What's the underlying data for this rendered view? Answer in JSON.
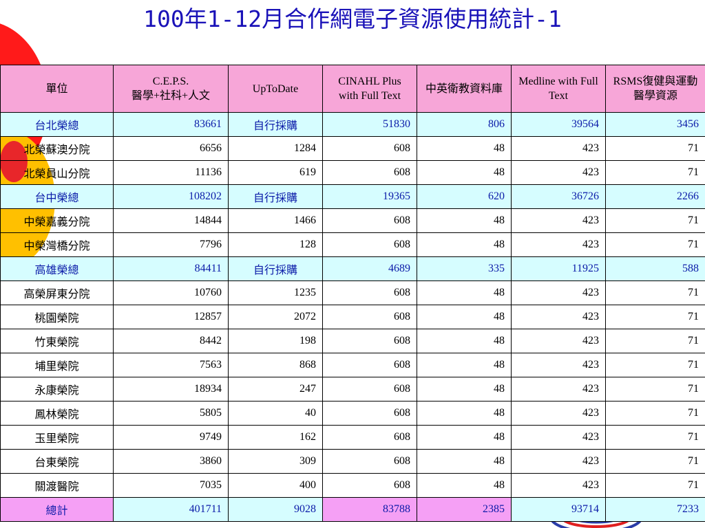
{
  "title": "100年1-12月合作網電子資源使用統計-1",
  "columns": [
    "單位",
    "C.E.P.S.\n醫學+社科+人文",
    "UpToDate",
    "CINAHL Plus with Full Text",
    "中英衛教資料庫",
    "Medline with Full Text",
    "RSMS復健與運動醫學資源"
  ],
  "rows": [
    {
      "type": "hq",
      "cells": [
        "台北榮總",
        "83661",
        "自行採購",
        "51830",
        "806",
        "39564",
        "3456"
      ]
    },
    {
      "type": "branch",
      "cells": [
        "北榮蘇澳分院",
        "6656",
        "1284",
        "608",
        "48",
        "423",
        "71"
      ]
    },
    {
      "type": "branch",
      "cells": [
        "北榮員山分院",
        "11136",
        "619",
        "608",
        "48",
        "423",
        "71"
      ]
    },
    {
      "type": "hq",
      "cells": [
        "台中榮總",
        "108202",
        "自行採購",
        "19365",
        "620",
        "36726",
        "2266"
      ]
    },
    {
      "type": "branch",
      "cells": [
        "中榮嘉義分院",
        "14844",
        "1466",
        "608",
        "48",
        "423",
        "71"
      ]
    },
    {
      "type": "branch",
      "cells": [
        "中榮灣橋分院",
        "7796",
        "128",
        "608",
        "48",
        "423",
        "71"
      ]
    },
    {
      "type": "hq",
      "cells": [
        "高雄榮總",
        "84411",
        "自行採購",
        "4689",
        "335",
        "11925",
        "588"
      ]
    },
    {
      "type": "branch",
      "cells": [
        "高榮屏東分院",
        "10760",
        "1235",
        "608",
        "48",
        "423",
        "71"
      ]
    },
    {
      "type": "branch",
      "cells": [
        "桃園榮院",
        "12857",
        "2072",
        "608",
        "48",
        "423",
        "71"
      ]
    },
    {
      "type": "branch",
      "cells": [
        "竹東榮院",
        "8442",
        "198",
        "608",
        "48",
        "423",
        "71"
      ]
    },
    {
      "type": "branch",
      "cells": [
        "埔里榮院",
        "7563",
        "868",
        "608",
        "48",
        "423",
        "71"
      ]
    },
    {
      "type": "branch",
      "cells": [
        "永康榮院",
        "18934",
        "247",
        "608",
        "48",
        "423",
        "71"
      ]
    },
    {
      "type": "branch",
      "cells": [
        "鳳林榮院",
        "5805",
        "40",
        "608",
        "48",
        "423",
        "71"
      ]
    },
    {
      "type": "branch",
      "cells": [
        "玉里榮院",
        "9749",
        "162",
        "608",
        "48",
        "423",
        "71"
      ]
    },
    {
      "type": "branch",
      "cells": [
        "台東榮院",
        "3860",
        "309",
        "608",
        "48",
        "423",
        "71"
      ]
    },
    {
      "type": "branch",
      "cells": [
        "關渡醫院",
        "7035",
        "400",
        "608",
        "48",
        "423",
        "71"
      ]
    },
    {
      "type": "total",
      "cells": [
        "總計",
        "401711",
        "9028",
        "83788",
        "2385",
        "93714",
        "7233"
      ]
    }
  ],
  "colors": {
    "header_bg": "#f7a6d8",
    "hq_row_bg": "#d6fdff",
    "hq_text": "#0a1aa8",
    "total_pink": "#f5a0f5",
    "title_color": "#1a12b8"
  }
}
